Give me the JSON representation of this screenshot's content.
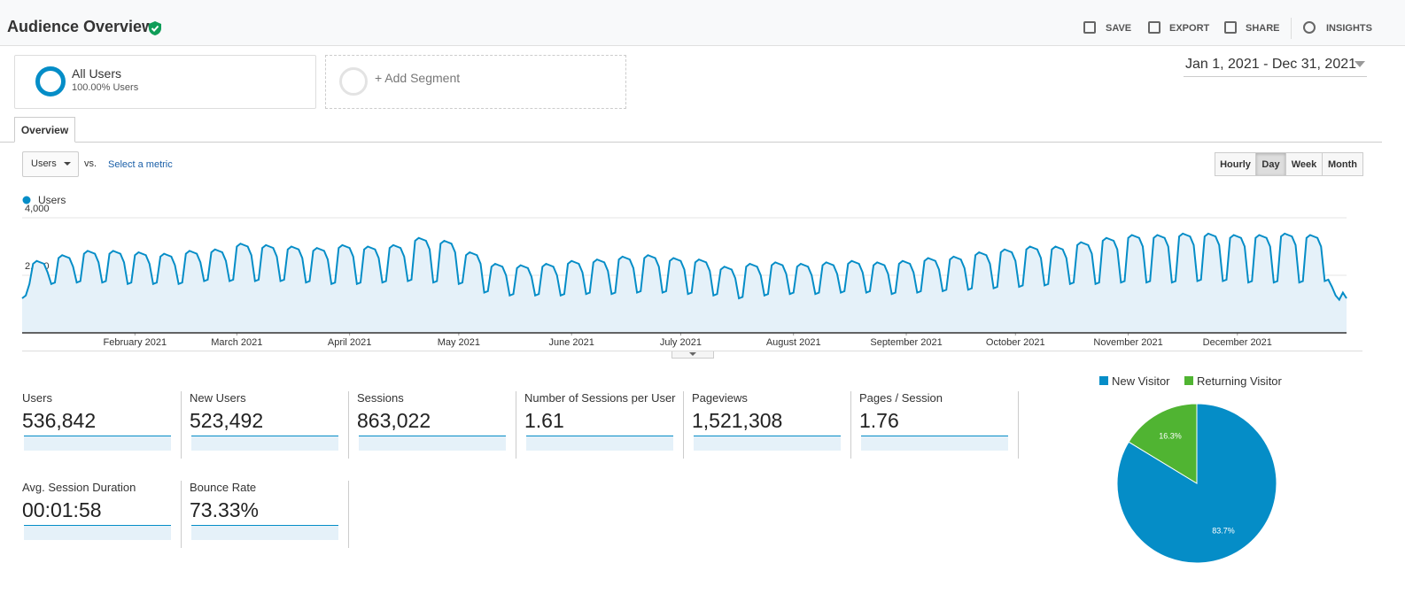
{
  "header": {
    "title": "Audience Overview",
    "actions": [
      "SAVE",
      "EXPORT",
      "SHARE",
      "INSIGHTS"
    ]
  },
  "segments": {
    "primary": {
      "name": "All Users",
      "detail": "100.00% Users"
    },
    "add": "+ Add Segment"
  },
  "date_range": "Jan 1, 2021 - Dec 31, 2021",
  "tab": "Overview",
  "controls": {
    "metric": "Users",
    "vs": "vs.",
    "select": "Select a metric",
    "granularity": [
      "Hourly",
      "Day",
      "Week",
      "Month"
    ],
    "active": "Day"
  },
  "metrics": [
    {
      "label": "Users",
      "value": "536,842"
    },
    {
      "label": "New Users",
      "value": "523,492"
    },
    {
      "label": "Sessions",
      "value": "863,022"
    },
    {
      "label": "Number of Sessions per User",
      "value": "1.61"
    },
    {
      "label": "Pageviews",
      "value": "1,521,308"
    },
    {
      "label": "Pages / Session",
      "value": "1.76"
    },
    {
      "label": "Avg. Session Duration",
      "value": "00:01:58"
    },
    {
      "label": "Bounce Rate",
      "value": "73.33%"
    }
  ],
  "chart_data": [
    {
      "type": "line",
      "grid": true,
      "xlim": [
        0,
        364
      ],
      "ylim": [
        0,
        4000
      ],
      "yticks": [
        {
          "value": 2000,
          "label": "2,000"
        },
        {
          "value": 4000,
          "label": "4,000"
        }
      ],
      "xticks": [
        {
          "value": 31,
          "label": "February 2021"
        },
        {
          "value": 59,
          "label": "March 2021"
        },
        {
          "value": 90,
          "label": "April 2021"
        },
        {
          "value": 120,
          "label": "May 2021"
        },
        {
          "value": 151,
          "label": "June 2021"
        },
        {
          "value": 181,
          "label": "July 2021"
        },
        {
          "value": 212,
          "label": "August 2021"
        },
        {
          "value": 243,
          "label": "September 2021"
        },
        {
          "value": 273,
          "label": "October 2021"
        },
        {
          "value": 304,
          "label": "November 2021"
        },
        {
          "value": 334,
          "label": "December 2021"
        }
      ],
      "series": [
        {
          "name": "Users",
          "color": "#058dc7",
          "values": [
            1200,
            1300,
            1700,
            2400,
            2500,
            2450,
            2400,
            2100,
            1700,
            1750,
            2600,
            2700,
            2650,
            2600,
            2300,
            1750,
            1800,
            2750,
            2850,
            2800,
            2750,
            2450,
            1750,
            1800,
            2750,
            2850,
            2800,
            2750,
            2450,
            1700,
            1750,
            2700,
            2800,
            2750,
            2700,
            2400,
            1700,
            1750,
            2650,
            2750,
            2700,
            2650,
            2350,
            1700,
            1750,
            2750,
            2850,
            2800,
            2750,
            2450,
            1800,
            1850,
            2800,
            2900,
            2850,
            2800,
            2500,
            1800,
            1850,
            3000,
            3100,
            3050,
            3000,
            2700,
            1800,
            1850,
            2950,
            3050,
            3000,
            2950,
            2650,
            1800,
            1850,
            2900,
            3000,
            2950,
            2900,
            2600,
            1750,
            1800,
            2850,
            2950,
            2900,
            2850,
            2550,
            1700,
            1750,
            2950,
            3050,
            3000,
            2950,
            2650,
            1700,
            1750,
            2900,
            3000,
            2950,
            2900,
            2600,
            1750,
            1800,
            2950,
            3050,
            3000,
            2950,
            2650,
            1800,
            1850,
            3200,
            3300,
            3250,
            3200,
            2900,
            1750,
            1800,
            3100,
            3200,
            3150,
            3100,
            2800,
            1700,
            1750,
            2700,
            2800,
            2750,
            2700,
            2400,
            1400,
            1450,
            2300,
            2400,
            2350,
            2300,
            2000,
            1300,
            1350,
            2250,
            2350,
            2300,
            2250,
            1950,
            1300,
            1350,
            2300,
            2400,
            2350,
            2300,
            2000,
            1300,
            1350,
            2400,
            2500,
            2450,
            2400,
            2100,
            1350,
            1400,
            2450,
            2550,
            2500,
            2450,
            2150,
            1350,
            1400,
            2550,
            2650,
            2600,
            2550,
            2250,
            1400,
            1450,
            2600,
            2700,
            2650,
            2600,
            2300,
            1400,
            1450,
            2500,
            2600,
            2550,
            2500,
            2200,
            1350,
            1400,
            2450,
            2550,
            2500,
            2450,
            2150,
            1300,
            1350,
            2200,
            2300,
            2250,
            2200,
            1900,
            1200,
            1250,
            2300,
            2400,
            2350,
            2300,
            2000,
            1300,
            1350,
            2350,
            2450,
            2400,
            2350,
            2050,
            1350,
            1400,
            2300,
            2400,
            2350,
            2300,
            2000,
            1350,
            1400,
            2350,
            2450,
            2400,
            2350,
            2050,
            1400,
            1450,
            2400,
            2500,
            2450,
            2400,
            2100,
            1400,
            1450,
            2350,
            2450,
            2400,
            2350,
            2050,
            1350,
            1400,
            2400,
            2500,
            2450,
            2400,
            2100,
            1400,
            1450,
            2500,
            2600,
            2550,
            2500,
            2200,
            1450,
            1500,
            2550,
            2650,
            2600,
            2550,
            2250,
            1500,
            1550,
            2700,
            2800,
            2750,
            2700,
            2400,
            1550,
            1600,
            2800,
            2900,
            2850,
            2800,
            2500,
            1600,
            1650,
            2900,
            3000,
            2950,
            2900,
            2600,
            1650,
            1700,
            2900,
            3000,
            2950,
            2900,
            2600,
            1700,
            1750,
            3050,
            3150,
            3100,
            3050,
            2750,
            1700,
            1750,
            3200,
            3300,
            3250,
            3200,
            2900,
            1750,
            1800,
            3300,
            3400,
            3350,
            3300,
            3000,
            1750,
            1800,
            3300,
            3400,
            3350,
            3300,
            3000,
            1750,
            1800,
            3350,
            3450,
            3400,
            3350,
            3050,
            1800,
            1850,
            3350,
            3450,
            3400,
            3350,
            3050,
            1800,
            1850,
            3300,
            3400,
            3350,
            3300,
            3000,
            1750,
            1800,
            3300,
            3400,
            3350,
            3300,
            3000,
            1750,
            1800,
            3350,
            3450,
            3400,
            3350,
            3050,
            1750,
            1800,
            3300,
            3400,
            3350,
            3300,
            3000,
            1800,
            1850,
            1600,
            1300,
            1150,
            1400,
            1200
          ]
        }
      ]
    },
    {
      "type": "pie",
      "categories": [
        "New Visitor",
        "Returning Visitor"
      ],
      "values": [
        83.7,
        16.3
      ],
      "value_labels": [
        "83.7%",
        "16.3%"
      ],
      "colors": [
        "#058dc7",
        "#50b432"
      ]
    }
  ]
}
